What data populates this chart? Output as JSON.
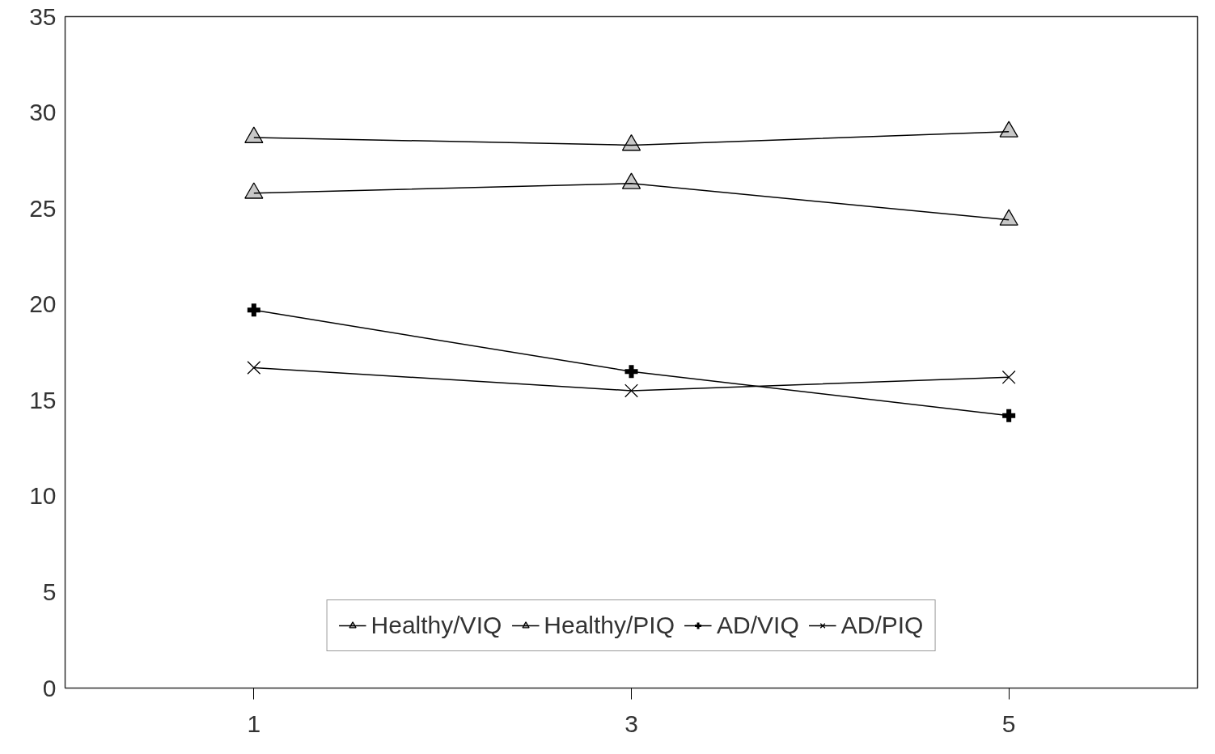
{
  "chart_data": {
    "type": "line",
    "x": [
      1,
      3,
      5
    ],
    "xlim": [
      0,
      6
    ],
    "xticks": [
      1,
      3,
      5
    ],
    "ylim": [
      0,
      35
    ],
    "yticks": [
      0,
      5,
      10,
      15,
      20,
      25,
      30,
      35
    ],
    "grid": false,
    "legend": "bottom",
    "series": [
      {
        "name": "Healthy/VIQ",
        "color": "#000000",
        "marker": "triangle",
        "values": [
          28.7,
          28.3,
          29.0
        ]
      },
      {
        "name": "Healthy/PIQ",
        "color": "#000000",
        "marker": "triangle",
        "values": [
          25.8,
          26.3,
          24.4
        ]
      },
      {
        "name": "AD/VIQ",
        "color": "#000000",
        "marker": "cross",
        "values": [
          19.7,
          16.5,
          14.2
        ]
      },
      {
        "name": "AD/PIQ",
        "color": "#000000",
        "marker": "x",
        "values": [
          16.7,
          15.5,
          16.2
        ]
      }
    ]
  }
}
